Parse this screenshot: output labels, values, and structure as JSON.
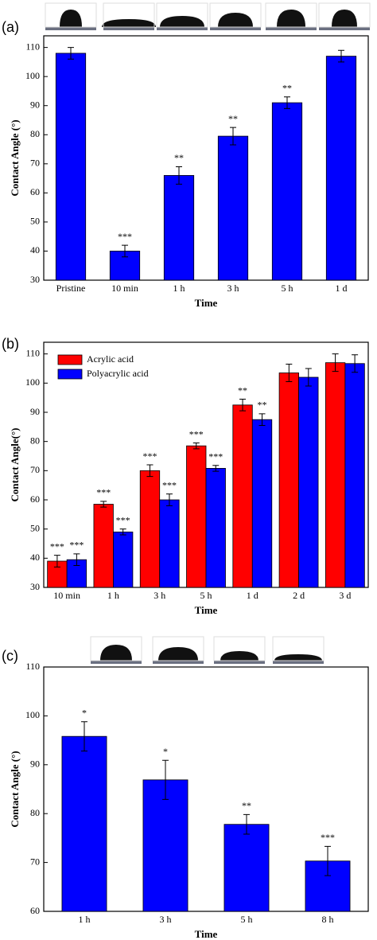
{
  "chart_data": [
    {
      "type": "bar",
      "panel_label": "(a)",
      "x_label": "Time",
      "y_label": "Contact Angle (°)",
      "categories": [
        "Pristine",
        "10 min",
        "1 h",
        "3 h",
        "5 h",
        "1 d"
      ],
      "series": [
        {
          "color": "#0000ff",
          "values": [
            108,
            40,
            66,
            79.5,
            91,
            107
          ],
          "errors": [
            2,
            2,
            3,
            3,
            2,
            2
          ],
          "significance": [
            null,
            "***",
            "**",
            "**",
            "**",
            null
          ]
        }
      ],
      "ylim": [
        30,
        114
      ],
      "yticks": [
        30,
        40,
        50,
        60,
        70,
        80,
        90,
        100,
        110
      ]
    },
    {
      "type": "bar",
      "panel_label": "(b)",
      "x_label": "Time",
      "y_label": "Contact Angle(°)",
      "categories": [
        "10 min",
        "1 h",
        "3 h",
        "5 h",
        "1 d",
        "2 d",
        "3 d"
      ],
      "series": [
        {
          "name": "Acrylic acid",
          "color": "#ff0000",
          "values": [
            39,
            58.5,
            70,
            78.5,
            92.5,
            103.5,
            107
          ],
          "errors": [
            2,
            1,
            2,
            1,
            2,
            3,
            3
          ],
          "significance": [
            "***",
            "***",
            "***",
            "***",
            "**",
            null,
            null
          ]
        },
        {
          "name": "Polyacrylic acid",
          "color": "#0000ff",
          "values": [
            39.5,
            49,
            60,
            70.8,
            87.5,
            102,
            106.7
          ],
          "errors": [
            2,
            1,
            2,
            1,
            2,
            3,
            3
          ],
          "significance": [
            "***",
            "***",
            "***",
            "***",
            "**",
            null,
            null
          ]
        }
      ],
      "legend": "upper left",
      "ylim": [
        30,
        114
      ],
      "yticks": [
        30,
        40,
        50,
        60,
        70,
        80,
        90,
        100,
        110
      ]
    },
    {
      "type": "bar",
      "panel_label": "(c)",
      "x_label": "Time",
      "y_label": "Contact Angle (°)",
      "categories": [
        "1 h",
        "3 h",
        "5 h",
        "8 h"
      ],
      "series": [
        {
          "color": "#0000ff",
          "values": [
            95.8,
            86.9,
            77.8,
            70.3
          ],
          "errors": [
            3,
            4,
            2,
            3
          ],
          "significance": [
            "*",
            "*",
            "**",
            "***"
          ]
        }
      ],
      "ylim": [
        60,
        110
      ],
      "yticks": [
        60,
        70,
        80,
        90,
        100,
        110
      ]
    }
  ]
}
